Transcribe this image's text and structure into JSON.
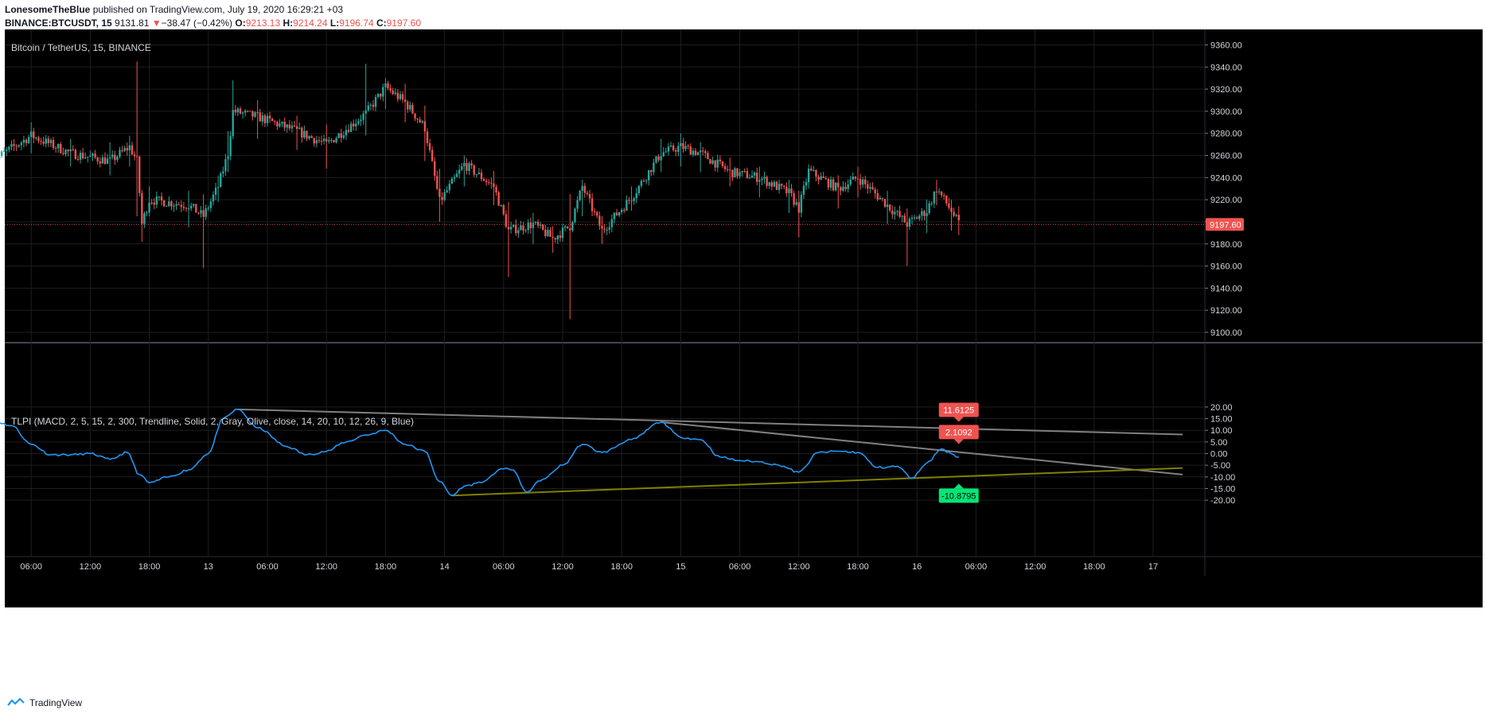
{
  "header": {
    "author": "LonesomeTheBlue",
    "published": "published on TradingView.com, July 19, 2020 16:29:21 +03",
    "symbol": "BINANCE:BTCUSDT, 15",
    "last": "9131.81",
    "arrow": "▼",
    "change": "−38.47 (−0.42%)",
    "o_label": "O:",
    "o_value": "9213.13",
    "h_label": "H:",
    "h_value": "9214.24",
    "l_label": "L:",
    "l_value": "9196.74",
    "c_label": "C:",
    "c_value": "9197.60"
  },
  "footer": {
    "brand": "TradingView"
  },
  "colors": {
    "background": "#000000",
    "grid": "#1e1e1e",
    "up": "#26a69a",
    "down": "#ef5350",
    "oscillator": "#2196f3",
    "resistance_trendline": "#808080",
    "support_trendline": "#808000",
    "label_up": "#00e676",
    "label_down": "#ef5350"
  },
  "chart_data": [
    {
      "type": "candlestick",
      "title": "Bitcoin / TetherUS, 15, BINANCE",
      "interval_minutes": 15,
      "y_ticks": [
        "9360.00",
        "9340.00",
        "9320.00",
        "9300.00",
        "9280.00",
        "9260.00",
        "9240.00",
        "9220.00",
        "9200.00",
        "9180.00",
        "9160.00",
        "9140.00",
        "9120.00",
        "9100.00"
      ],
      "ylim": [
        9090,
        9370
      ],
      "last_price_label": "9197.60",
      "anchors": [
        {
          "time": "2020-07-12 02:00",
          "price": 9255,
          "low": 9245,
          "high": 9272
        },
        {
          "time": "2020-07-12 06:00",
          "price": 9278,
          "low": 9262,
          "high": 9290
        },
        {
          "time": "2020-07-12 10:00",
          "price": 9262,
          "low": 9250,
          "high": 9275
        },
        {
          "time": "2020-07-12 14:00",
          "price": 9255,
          "low": 9242,
          "high": 9272
        },
        {
          "time": "2020-07-12 16:00",
          "price": 9268,
          "low": 9250,
          "high": 9278
        },
        {
          "time": "2020-07-12 16:45",
          "price": 9255,
          "low": 9205,
          "high": 9345
        },
        {
          "time": "2020-07-12 17:15",
          "price": 9198,
          "low": 9182,
          "high": 9228
        },
        {
          "time": "2020-07-12 18:00",
          "price": 9220,
          "low": 9205,
          "high": 9232
        },
        {
          "time": "2020-07-12 22:00",
          "price": 9215,
          "low": 9195,
          "high": 9228
        },
        {
          "time": "2020-07-12 23:30",
          "price": 9205,
          "low": 9158,
          "high": 9225
        },
        {
          "time": "2020-07-13 01:00",
          "price": 9232,
          "low": 9218,
          "high": 9242
        },
        {
          "time": "2020-07-13 02:00",
          "price": 9262,
          "low": 9245,
          "high": 9282
        },
        {
          "time": "2020-07-13 02:30",
          "price": 9300,
          "low": 9280,
          "high": 9328
        },
        {
          "time": "2020-07-13 05:00",
          "price": 9295,
          "low": 9275,
          "high": 9310
        },
        {
          "time": "2020-07-13 09:00",
          "price": 9282,
          "low": 9265,
          "high": 9296
        },
        {
          "time": "2020-07-13 12:00",
          "price": 9270,
          "low": 9248,
          "high": 9288
        },
        {
          "time": "2020-07-13 16:00",
          "price": 9298,
          "low": 9278,
          "high": 9343
        },
        {
          "time": "2020-07-13 18:00",
          "price": 9322,
          "low": 9302,
          "high": 9330
        },
        {
          "time": "2020-07-13 20:00",
          "price": 9308,
          "low": 9290,
          "high": 9325
        },
        {
          "time": "2020-07-13 22:00",
          "price": 9285,
          "low": 9255,
          "high": 9305
        },
        {
          "time": "2020-07-13 23:30",
          "price": 9218,
          "low": 9200,
          "high": 9248
        },
        {
          "time": "2020-07-14 02:00",
          "price": 9252,
          "low": 9232,
          "high": 9260
        },
        {
          "time": "2020-07-14 05:00",
          "price": 9232,
          "low": 9215,
          "high": 9246
        },
        {
          "time": "2020-07-14 06:30",
          "price": 9192,
          "low": 9150,
          "high": 9218
        },
        {
          "time": "2020-07-14 09:00",
          "price": 9198,
          "low": 9180,
          "high": 9208
        },
        {
          "time": "2020-07-14 11:00",
          "price": 9185,
          "low": 9172,
          "high": 9196
        },
        {
          "time": "2020-07-14 12:45",
          "price": 9196,
          "low": 9112,
          "high": 9225
        },
        {
          "time": "2020-07-14 14:00",
          "price": 9232,
          "low": 9205,
          "high": 9238
        },
        {
          "time": "2020-07-14 16:00",
          "price": 9192,
          "low": 9180,
          "high": 9205
        },
        {
          "time": "2020-07-14 19:00",
          "price": 9222,
          "low": 9210,
          "high": 9232
        },
        {
          "time": "2020-07-14 22:00",
          "price": 9262,
          "low": 9245,
          "high": 9275
        },
        {
          "time": "2020-07-15 00:00",
          "price": 9268,
          "low": 9250,
          "high": 9280
        },
        {
          "time": "2020-07-15 02:00",
          "price": 9262,
          "low": 9245,
          "high": 9272
        },
        {
          "time": "2020-07-15 05:00",
          "price": 9245,
          "low": 9232,
          "high": 9258
        },
        {
          "time": "2020-07-15 08:00",
          "price": 9240,
          "low": 9222,
          "high": 9250
        },
        {
          "time": "2020-07-15 11:00",
          "price": 9226,
          "low": 9208,
          "high": 9238
        },
        {
          "time": "2020-07-15 12:00",
          "price": 9212,
          "low": 9186,
          "high": 9228
        },
        {
          "time": "2020-07-15 13:00",
          "price": 9246,
          "low": 9230,
          "high": 9252
        },
        {
          "time": "2020-07-15 16:00",
          "price": 9230,
          "low": 9212,
          "high": 9242
        },
        {
          "time": "2020-07-15 18:00",
          "price": 9240,
          "low": 9222,
          "high": 9250
        },
        {
          "time": "2020-07-15 21:00",
          "price": 9215,
          "low": 9198,
          "high": 9228
        },
        {
          "time": "2020-07-15 23:00",
          "price": 9198,
          "low": 9160,
          "high": 9212
        },
        {
          "time": "2020-07-16 01:00",
          "price": 9210,
          "low": 9190,
          "high": 9220
        },
        {
          "time": "2020-07-16 02:00",
          "price": 9230,
          "low": 9215,
          "high": 9238
        },
        {
          "time": "2020-07-16 03:30",
          "price": 9210,
          "low": 9192,
          "high": 9220
        },
        {
          "time": "2020-07-16 04:15",
          "price": 9198,
          "low": 9188,
          "high": 9214
        }
      ]
    },
    {
      "type": "line",
      "title": "TLPI (MACD, 2, 5, 15, 2, 300, Trendline, Solid, 2, Gray, Olive, close, 14, 20, 10, 12, 26, 9, Blue)",
      "y_ticks": [
        "20.00",
        "15.00",
        "10.00",
        "5.00",
        "0.00",
        "-5.00",
        "-10.00",
        "-15.00",
        "-20.00"
      ],
      "ylim": [
        -22,
        22
      ],
      "series": [
        {
          "points": [
            {
              "time": "2020-07-12 00:00",
              "value": 8
            },
            {
              "time": "2020-07-12 02:30",
              "value": 13.5
            },
            {
              "time": "2020-07-12 04:00",
              "value": 12
            },
            {
              "time": "2020-07-12 06:00",
              "value": 4
            },
            {
              "time": "2020-07-12 08:00",
              "value": -0.5
            },
            {
              "time": "2020-07-12 10:00",
              "value": -0.5
            },
            {
              "time": "2020-07-12 12:00",
              "value": 0
            },
            {
              "time": "2020-07-12 14:00",
              "value": -2.5
            },
            {
              "time": "2020-07-12 15:45",
              "value": 0.5
            },
            {
              "time": "2020-07-12 17:00",
              "value": -9
            },
            {
              "time": "2020-07-12 18:00",
              "value": -12.5
            },
            {
              "time": "2020-07-12 20:00",
              "value": -10
            },
            {
              "time": "2020-07-12 22:00",
              "value": -7
            },
            {
              "time": "2020-07-13 00:00",
              "value": 0
            },
            {
              "time": "2020-07-13 01:30",
              "value": 15
            },
            {
              "time": "2020-07-13 03:00",
              "value": 19
            },
            {
              "time": "2020-07-13 05:00",
              "value": 11
            },
            {
              "time": "2020-07-13 08:00",
              "value": 3
            },
            {
              "time": "2020-07-13 10:00",
              "value": -0.5
            },
            {
              "time": "2020-07-13 12:00",
              "value": 1
            },
            {
              "time": "2020-07-13 14:00",
              "value": 5
            },
            {
              "time": "2020-07-13 16:00",
              "value": 8
            },
            {
              "time": "2020-07-13 18:00",
              "value": 10
            },
            {
              "time": "2020-07-13 20:00",
              "value": 4
            },
            {
              "time": "2020-07-13 22:00",
              "value": 1
            },
            {
              "time": "2020-07-13 23:30",
              "value": -12
            },
            {
              "time": "2020-07-14 00:45",
              "value": -18
            },
            {
              "time": "2020-07-14 02:00",
              "value": -14
            },
            {
              "time": "2020-07-14 04:00",
              "value": -12
            },
            {
              "time": "2020-07-14 05:45",
              "value": -6.5
            },
            {
              "time": "2020-07-14 07:00",
              "value": -7
            },
            {
              "time": "2020-07-14 08:15",
              "value": -16.5
            },
            {
              "time": "2020-07-14 10:00",
              "value": -11
            },
            {
              "time": "2020-07-14 12:00",
              "value": -5
            },
            {
              "time": "2020-07-14 14:00",
              "value": 4
            },
            {
              "time": "2020-07-14 16:00",
              "value": 0.5
            },
            {
              "time": "2020-07-14 19:00",
              "value": 6
            },
            {
              "time": "2020-07-14 22:00",
              "value": 13.5
            },
            {
              "time": "2020-07-15 00:00",
              "value": 7
            },
            {
              "time": "2020-07-15 02:00",
              "value": 6
            },
            {
              "time": "2020-07-15 04:00",
              "value": -1.5
            },
            {
              "time": "2020-07-15 06:00",
              "value": -3
            },
            {
              "time": "2020-07-15 08:00",
              "value": -3.5
            },
            {
              "time": "2020-07-15 10:00",
              "value": -5
            },
            {
              "time": "2020-07-15 12:00",
              "value": -8
            },
            {
              "time": "2020-07-15 14:00",
              "value": 0.5
            },
            {
              "time": "2020-07-15 16:00",
              "value": 1
            },
            {
              "time": "2020-07-15 18:00",
              "value": 0.5
            },
            {
              "time": "2020-07-15 20:00",
              "value": -6
            },
            {
              "time": "2020-07-15 22:00",
              "value": -5.5
            },
            {
              "time": "2020-07-15 23:30",
              "value": -10.5
            },
            {
              "time": "2020-07-16 01:00",
              "value": -4
            },
            {
              "time": "2020-07-16 02:30",
              "value": 2
            },
            {
              "time": "2020-07-16 03:30",
              "value": 0
            },
            {
              "time": "2020-07-16 04:15",
              "value": -1.5
            }
          ]
        }
      ],
      "trendlines": [
        {
          "color": "Gray",
          "from": {
            "time": "2020-07-13 03:00",
            "value": 19
          },
          "to": {
            "time": "2020-07-17 03:00",
            "value": 8.2
          }
        },
        {
          "color": "Gray",
          "from": {
            "time": "2020-07-14 22:00",
            "value": 13.5
          },
          "to": {
            "time": "2020-07-17 03:00",
            "value": -9
          }
        },
        {
          "color": "Olive",
          "from": {
            "time": "2020-07-14 00:45",
            "value": -18
          },
          "to": {
            "time": "2020-07-17 03:00",
            "value": -6.2
          }
        }
      ],
      "labels": [
        {
          "text": "11.6125",
          "value": 11.6125,
          "kind": "down"
        },
        {
          "text": "2.1092",
          "value": 2.1092,
          "kind": "down"
        },
        {
          "text": "-10.8795",
          "value": -10.8795,
          "kind": "up"
        }
      ]
    }
  ],
  "x_axis": {
    "ticks": [
      {
        "time": "2020-07-12 06:00",
        "label": "06:00"
      },
      {
        "time": "2020-07-12 12:00",
        "label": "12:00"
      },
      {
        "time": "2020-07-12 18:00",
        "label": "18:00"
      },
      {
        "time": "2020-07-13 00:00",
        "label": "13"
      },
      {
        "time": "2020-07-13 06:00",
        "label": "06:00"
      },
      {
        "time": "2020-07-13 12:00",
        "label": "12:00"
      },
      {
        "time": "2020-07-13 18:00",
        "label": "18:00"
      },
      {
        "time": "2020-07-14 00:00",
        "label": "14"
      },
      {
        "time": "2020-07-14 06:00",
        "label": "06:00"
      },
      {
        "time": "2020-07-14 12:00",
        "label": "12:00"
      },
      {
        "time": "2020-07-14 18:00",
        "label": "18:00"
      },
      {
        "time": "2020-07-15 00:00",
        "label": "15"
      },
      {
        "time": "2020-07-15 06:00",
        "label": "06:00"
      },
      {
        "time": "2020-07-15 12:00",
        "label": "12:00"
      },
      {
        "time": "2020-07-15 18:00",
        "label": "18:00"
      },
      {
        "time": "2020-07-16 00:00",
        "label": "16"
      },
      {
        "time": "2020-07-16 06:00",
        "label": "06:00"
      },
      {
        "time": "2020-07-16 12:00",
        "label": "12:00"
      },
      {
        "time": "2020-07-16 18:00",
        "label": "18:00"
      },
      {
        "time": "2020-07-17 00:00",
        "label": "17"
      }
    ]
  }
}
